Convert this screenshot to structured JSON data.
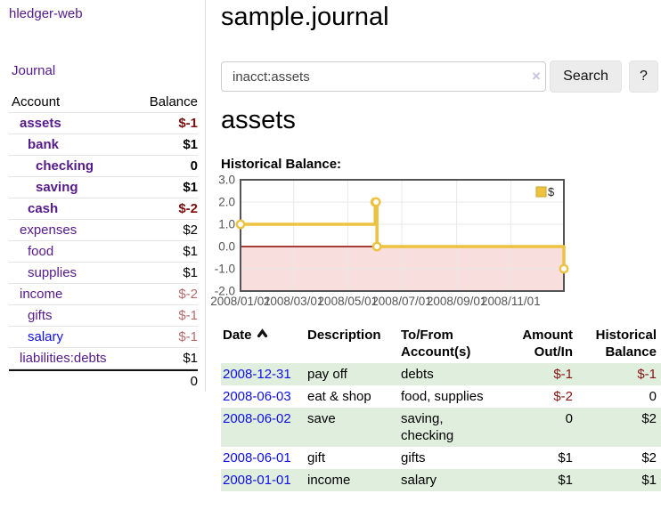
{
  "colors": {
    "visited_link": "#551A8B",
    "unvisited_link": "#0F0FE8",
    "negative_strong": "#7d0b0b",
    "negative_soft": "#bb6a6a",
    "table_negative": "#861414",
    "row_stripe_green": "#dfeedd",
    "series_yellow": "#EDC240",
    "negative_region_pink": "#f9dede",
    "zero_line_red": "#8b0000"
  },
  "sidebar": {
    "app_title": "hledger-web",
    "journal_link": "Journal",
    "accounts_table": {
      "headers": [
        "Account",
        "Balance"
      ],
      "rows": [
        {
          "account": "assets",
          "indent": 1,
          "bold": true,
          "balance": "$-1",
          "negative": true,
          "unvisited": false
        },
        {
          "account": "bank",
          "indent": 2,
          "bold": true,
          "balance": "$1",
          "negative": false,
          "unvisited": false
        },
        {
          "account": "checking",
          "indent": 3,
          "bold": true,
          "balance": "0",
          "negative": false,
          "unvisited": false
        },
        {
          "account": "saving",
          "indent": 3,
          "bold": true,
          "balance": "$1",
          "negative": false,
          "unvisited": false
        },
        {
          "account": "cash",
          "indent": 2,
          "bold": true,
          "balance": "$-2",
          "negative": true,
          "unvisited": false
        },
        {
          "account": "expenses",
          "indent": 1,
          "bold": false,
          "balance": "$2",
          "negative": false,
          "unvisited": false
        },
        {
          "account": "food",
          "indent": 2,
          "bold": false,
          "balance": "$1",
          "negative": false,
          "unvisited": false
        },
        {
          "account": "supplies",
          "indent": 2,
          "bold": false,
          "balance": "$1",
          "negative": false,
          "unvisited": false
        },
        {
          "account": "income",
          "indent": 1,
          "bold": false,
          "balance": "$-2",
          "negative": true,
          "unvisited": false
        },
        {
          "account": "gifts",
          "indent": 2,
          "bold": false,
          "balance": "$-1",
          "negative": true,
          "unvisited": false
        },
        {
          "account": "salary",
          "indent": 2,
          "bold": false,
          "balance": "$-1",
          "negative": true,
          "unvisited": true
        },
        {
          "account": "liabilities:debts",
          "indent": 1,
          "bold": false,
          "balance": "$1",
          "negative": false,
          "unvisited": false
        }
      ],
      "total": "0"
    }
  },
  "header": {
    "title": "sample.journal"
  },
  "search": {
    "value": "inacct:assets",
    "clear_icon": "×",
    "button_label": "Search",
    "help_label": "?"
  },
  "main": {
    "account_heading": "assets",
    "chart_label": "Historical Balance:"
  },
  "chart_data": {
    "type": "line",
    "title": "Historical Balance",
    "step": true,
    "grid": true,
    "legend_position": "top-right",
    "xlim": [
      "2008-01-01",
      "2008-12-31"
    ],
    "ylim": [
      -2,
      3
    ],
    "x_tick_dates": [
      "2008-01-01",
      "2008-03-01",
      "2008-05-01",
      "2008-07-01",
      "2008-09-01",
      "2008-11-01"
    ],
    "x_tick_labels": [
      "2008/01/01",
      "2008/03/01",
      "2008/05/01",
      "2008/07/01",
      "2008/09/01",
      "2008/11/01"
    ],
    "y_ticks": [
      "3.0",
      "2.0",
      "1.0",
      "0.0",
      "-1.0",
      "-2.0"
    ],
    "series": [
      {
        "name": "$",
        "color": "#EDC240",
        "x": [
          "2008-01-01",
          "2008-06-01",
          "2008-06-02",
          "2008-06-03",
          "2008-12-31"
        ],
        "y": [
          1,
          2,
          2,
          0,
          -1
        ]
      }
    ],
    "negative_region_color": "#f9dede",
    "zero_line_color": "#8b0000",
    "gridline_color": "#e8e8e8",
    "frame_color": "#545454",
    "tick_label_color": "#545454"
  },
  "register": {
    "headers": [
      "Date",
      "Description",
      "To/From Account(s)",
      "Amount Out/In",
      "Historical Balance"
    ],
    "rows": [
      {
        "date": "2008-12-31",
        "description": "pay off",
        "accounts": "debts",
        "amount": "$-1",
        "amount_negative": true,
        "balance": "$-1",
        "balance_negative": true
      },
      {
        "date": "2008-06-03",
        "description": "eat & shop",
        "accounts": "food, supplies",
        "amount": "$-2",
        "amount_negative": true,
        "balance": "0",
        "balance_negative": false
      },
      {
        "date": "2008-06-02",
        "description": "save",
        "accounts": "saving, checking",
        "amount": "0",
        "amount_negative": false,
        "balance": "$2",
        "balance_negative": false
      },
      {
        "date": "2008-06-01",
        "description": "gift",
        "accounts": "gifts",
        "amount": "$1",
        "amount_negative": false,
        "balance": "$2",
        "balance_negative": false
      },
      {
        "date": "2008-01-01",
        "description": "income",
        "accounts": "salary",
        "amount": "$1",
        "amount_negative": false,
        "balance": "$1",
        "balance_negative": false
      }
    ]
  }
}
